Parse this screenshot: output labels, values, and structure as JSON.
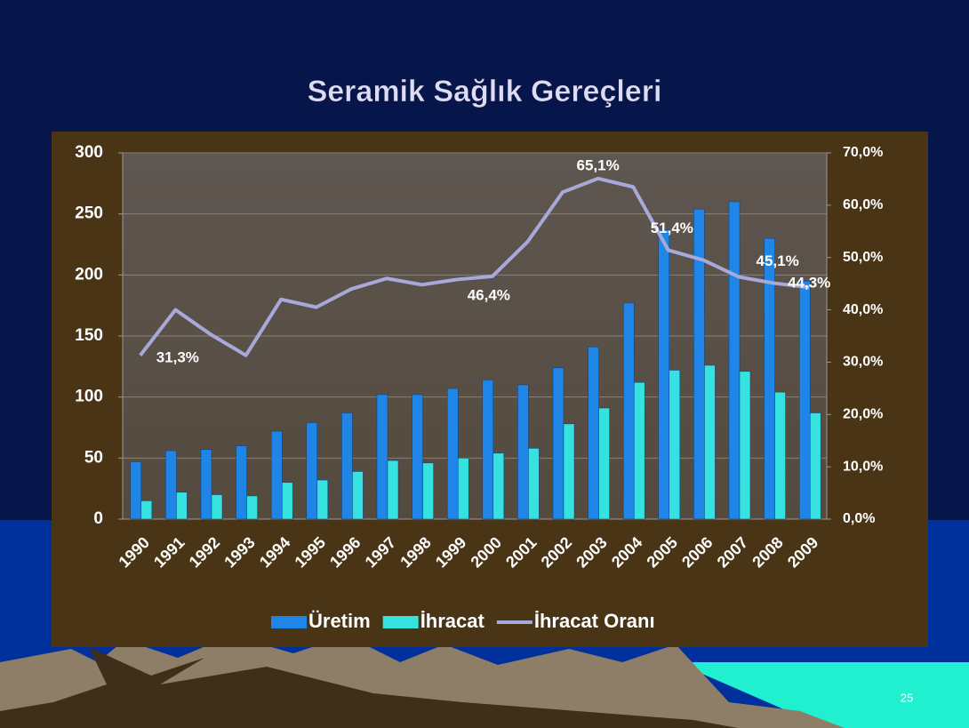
{
  "chart_data": {
    "type": "bar_line",
    "title": "Seramik Sağlık Gereçleri",
    "categories": [
      "1990",
      "1991",
      "1992",
      "1993",
      "1994",
      "1995",
      "1996",
      "1997",
      "1998",
      "1999",
      "2000",
      "2001",
      "2002",
      "2003",
      "2004",
      "2005",
      "2006",
      "2007",
      "2008",
      "2009"
    ],
    "series": [
      {
        "name": "Üretim",
        "color": "#1f86e8",
        "kind": "bar",
        "values": [
          47,
          56,
          57,
          60,
          72,
          79,
          87,
          102,
          102,
          107,
          114,
          110,
          124,
          141,
          177,
          237,
          254,
          260,
          230,
          195
        ]
      },
      {
        "name": "İhracat",
        "color": "#35e2e0",
        "kind": "bar",
        "values": [
          15,
          22,
          20,
          19,
          30,
          32,
          39,
          48,
          46,
          50,
          54,
          58,
          78,
          91,
          112,
          122,
          126,
          121,
          104,
          87
        ]
      },
      {
        "name": "İhracat Oranı",
        "color": "#a9a9d9",
        "kind": "line",
        "axis": "y2",
        "values": [
          31.3,
          40,
          35.3,
          31.3,
          42,
          40.5,
          44,
          46,
          44.8,
          45.8,
          46.4,
          53,
          62.5,
          65.1,
          63.5,
          51.4,
          49.5,
          46.3,
          45.1,
          44.3
        ],
        "value_labels": [
          "31,3%",
          null,
          null,
          null,
          null,
          null,
          null,
          null,
          null,
          null,
          "46,4%",
          null,
          null,
          "65,1%",
          null,
          "51,4%",
          null,
          null,
          "45,1%",
          "44,3%"
        ]
      }
    ],
    "ylim": [
      0,
      300
    ],
    "yticks": [
      0,
      50,
      100,
      150,
      200,
      250,
      300
    ],
    "y2lim": [
      0,
      70
    ],
    "y2ticks": [
      {
        "value": 0,
        "label": "0,0%"
      },
      {
        "value": 10,
        "label": "10,0%"
      },
      {
        "value": 20,
        "label": "20,0%"
      },
      {
        "value": 30,
        "label": "30,0%"
      },
      {
        "value": 40,
        "label": "40,0%"
      },
      {
        "value": 50,
        "label": "50,0%"
      },
      {
        "value": 60,
        "label": "60,0%"
      },
      {
        "value": 70,
        "label": "70,0%"
      }
    ],
    "grid": true,
    "legend": "bottom"
  },
  "slide": {
    "page_number": 25
  }
}
